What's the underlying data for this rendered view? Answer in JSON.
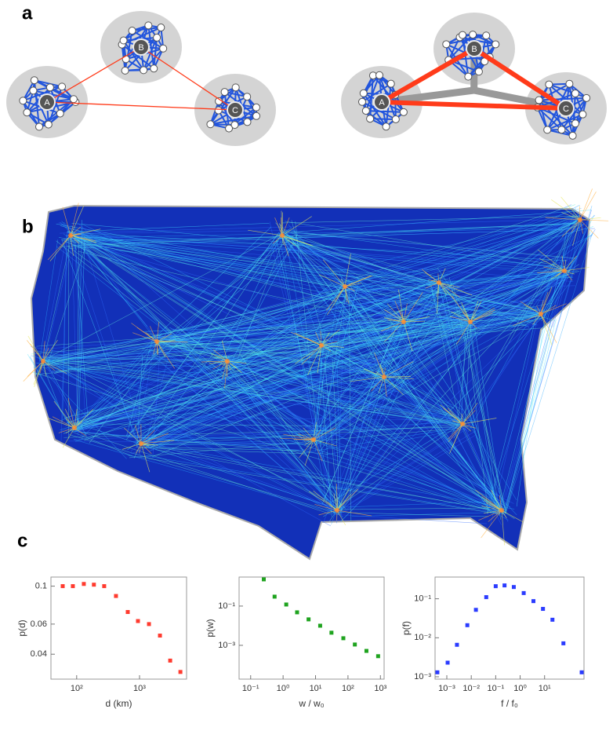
{
  "panel_labels": [
    "a",
    "b",
    "c"
  ],
  "diagrams": [
    {
      "nodes": [
        "A",
        "B",
        "C"
      ]
    },
    {
      "nodes": [
        "A",
        "B",
        "C"
      ]
    }
  ],
  "chart_data": [
    {
      "type": "scatter",
      "color": "#ff3b2f",
      "xlog": true,
      "ylog": true,
      "xlabel": "d (km)",
      "ylabel": "p(d)",
      "x": [
        60,
        87,
        130,
        188,
        274,
        422,
        650,
        944,
        1413,
        2113,
        3073,
        4467
      ],
      "values": [
        0.1,
        0.1,
        0.103,
        0.102,
        0.1,
        0.0876,
        0.0706,
        0.0625,
        0.06,
        0.0514,
        0.0367,
        0.0315
      ],
      "xlim": [
        39,
        5600
      ],
      "ylim": [
        0.0286,
        0.113
      ],
      "xticks": [
        {
          "value": 100,
          "label": "10²"
        },
        {
          "value": 1000,
          "label": "10³"
        }
      ],
      "yticks": [
        0.04,
        0.06,
        0.1
      ]
    },
    {
      "type": "scatter",
      "color": "#1fa31f",
      "xlog": true,
      "ylog": true,
      "xlabel": "w / w₀",
      "ylabel": "p(w)",
      "x": [
        0.254,
        0.547,
        1.25,
        2.7,
        6.1,
        13.9,
        31,
        72,
        163,
        371,
        850
      ],
      "values": [
        2.29,
        0.302,
        0.12,
        0.048,
        0.021,
        0.01,
        0.0044,
        0.0023,
        0.0011,
        0.00052,
        0.00028
      ],
      "xlim": [
        0.044,
        1300
      ],
      "ylim": [
        1.9e-05,
        3.0
      ],
      "xticks": [
        {
          "value": 0.1,
          "label": "10⁻¹"
        },
        {
          "value": 1,
          "label": "10⁰"
        },
        {
          "value": 10,
          "label": "10¹"
        },
        {
          "value": 100,
          "label": "10²"
        },
        {
          "value": 1000,
          "label": "10³"
        }
      ],
      "yticks": [
        {
          "value": 0.1,
          "label": "10⁻¹"
        },
        {
          "value": 0.001,
          "label": "10⁻³"
        }
      ]
    },
    {
      "type": "scatter",
      "color": "#2b3cff",
      "xlog": true,
      "ylog": true,
      "xlabel": "f / f₀",
      "ylabel": "p(f)",
      "x": [
        0.00041,
        0.00108,
        0.0026,
        0.0069,
        0.0155,
        0.041,
        0.1,
        0.23,
        0.55,
        1.4,
        3.5,
        8.6,
        21,
        59,
        330
      ],
      "values": [
        0.0013,
        0.0023,
        0.0066,
        0.021,
        0.052,
        0.11,
        0.21,
        0.22,
        0.2,
        0.14,
        0.087,
        0.055,
        0.029,
        0.0072,
        0.0013
      ],
      "xlim": [
        0.00033,
        410
      ],
      "ylim": [
        0.00087,
        0.36
      ],
      "xticks": [
        {
          "value": 0.001,
          "label": "10⁻³"
        },
        {
          "value": 0.01,
          "label": "10⁻²"
        },
        {
          "value": 0.1,
          "label": "10⁻¹"
        },
        {
          "value": 1,
          "label": "10⁰"
        },
        {
          "value": 10,
          "label": "10¹"
        }
      ],
      "yticks": [
        {
          "value": 0.1,
          "label": "10⁻¹"
        },
        {
          "value": 0.01,
          "label": "10⁻²"
        },
        {
          "value": 0.001,
          "label": "10⁻³"
        }
      ]
    }
  ]
}
